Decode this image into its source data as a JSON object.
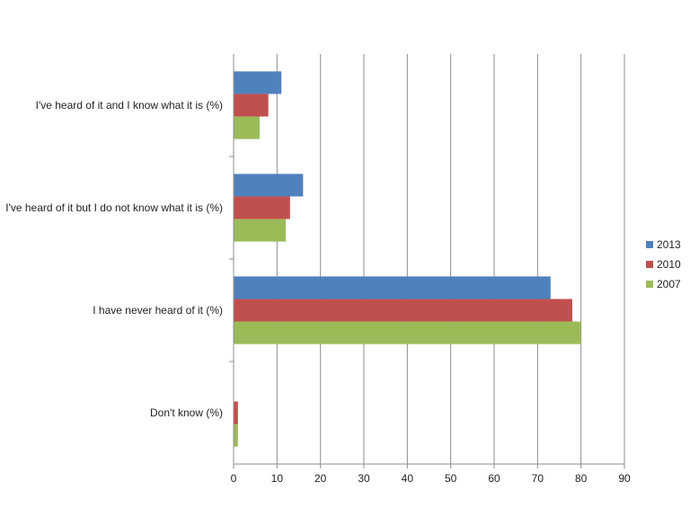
{
  "chart_data": {
    "type": "bar",
    "orientation": "horizontal",
    "title": "",
    "xlabel": "",
    "ylabel": "",
    "xlim": [
      0,
      90
    ],
    "x_ticks": [
      0,
      10,
      20,
      30,
      40,
      50,
      60,
      70,
      80,
      90
    ],
    "grid": "vertical",
    "legend_position": "right",
    "categories": [
      "I've heard of it and I know what it is (%)",
      "I've heard of it but I do not know what it is (%)",
      "I have never heard of it (%)",
      "Don't know (%)"
    ],
    "series": [
      {
        "name": "2013",
        "color": "#4f81bd",
        "values": [
          11,
          16,
          73,
          0
        ]
      },
      {
        "name": "2010",
        "color": "#c0504d",
        "values": [
          8,
          13,
          78,
          1
        ]
      },
      {
        "name": "2007",
        "color": "#9bbb59",
        "values": [
          6,
          12,
          80,
          1
        ]
      }
    ]
  }
}
